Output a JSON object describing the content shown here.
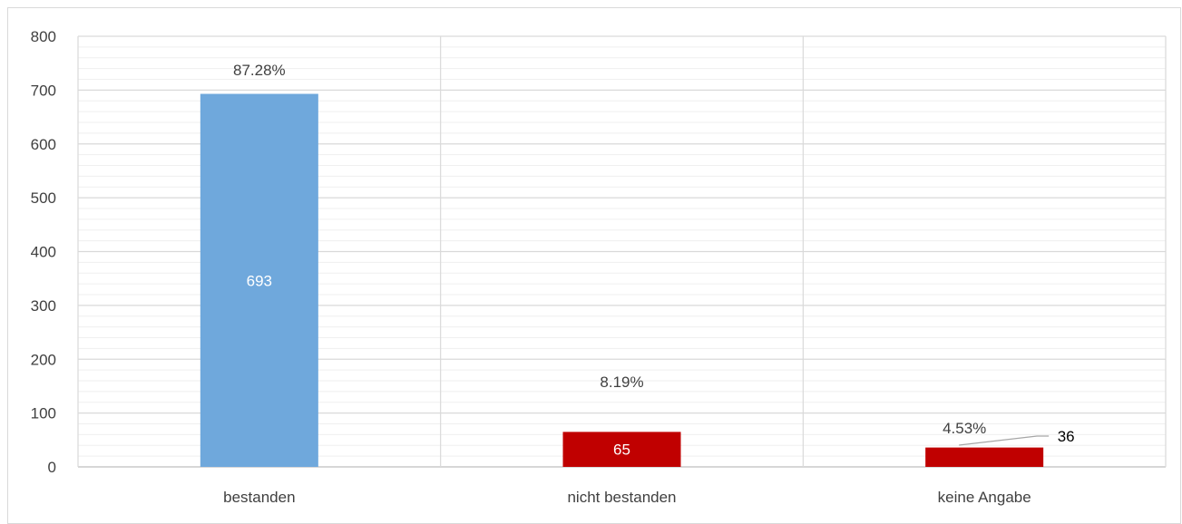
{
  "chart_data": {
    "type": "bar",
    "categories": [
      "bestanden",
      "nicht bestanden",
      "keine Angabe"
    ],
    "values": [
      693,
      65,
      36
    ],
    "value_labels": [
      "693",
      "65",
      "36"
    ],
    "percent_labels": [
      "87.28%",
      "8.19%",
      "4.53%"
    ],
    "bar_colors": [
      "#6fa8dc",
      "#c00000",
      "#c00000"
    ],
    "value_label_colors": [
      "#ffffff",
      "#ffffff",
      "#000000"
    ],
    "ylim": [
      0,
      800
    ],
    "yticks": [
      0,
      100,
      200,
      300,
      400,
      500,
      600,
      700,
      800
    ],
    "ytick_labels": [
      "0",
      "100",
      "200",
      "300",
      "400",
      "500",
      "600",
      "700",
      "800"
    ],
    "minor_step": 20,
    "grid": true,
    "legend": "none",
    "title": "",
    "xlabel": "",
    "ylabel": ""
  }
}
